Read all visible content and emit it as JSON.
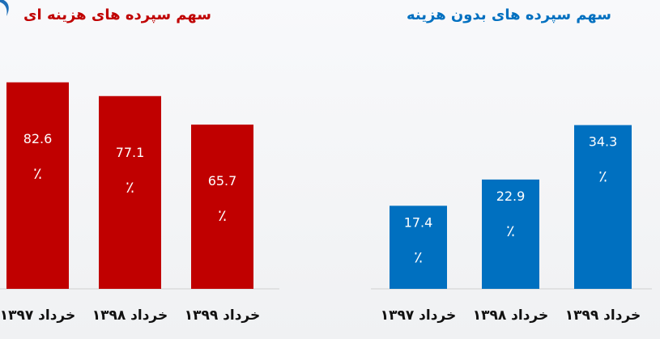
{
  "colors": {
    "cost_bar": "#c00000",
    "free_bar": "#0070c0",
    "cost_title": "#c00000",
    "free_title": "#0070c0",
    "axis": "#d0d0d0",
    "accent_icon": "#1f6fb8"
  },
  "icons": {
    "corner": "swirl-logo-icon"
  },
  "chart_data": [
    {
      "type": "bar",
      "title": "سهم سپرده های هزینه ای",
      "xlabel": "",
      "ylabel": "",
      "categories": [
        "خرداد ۱۳۹۷",
        "خرداد ۱۳۹۸",
        "خرداد ۱۳۹۹"
      ],
      "values": [
        82.6,
        77.1,
        65.7
      ],
      "value_labels": [
        "82.6",
        "77.1",
        "65.7"
      ],
      "unit": "٪",
      "ylim": [
        0,
        100
      ],
      "grid": false
    },
    {
      "type": "bar",
      "title": "سهم سپرده های بدون هزینه",
      "xlabel": "",
      "ylabel": "",
      "categories": [
        "خرداد ۱۳۹۷",
        "خرداد ۱۳۹۸",
        "خرداد ۱۳۹۹"
      ],
      "values": [
        17.4,
        22.9,
        34.3
      ],
      "value_labels": [
        "17.4",
        "22.9",
        "34.3"
      ],
      "unit": "٪",
      "ylim": [
        0,
        100
      ],
      "grid": false
    }
  ]
}
